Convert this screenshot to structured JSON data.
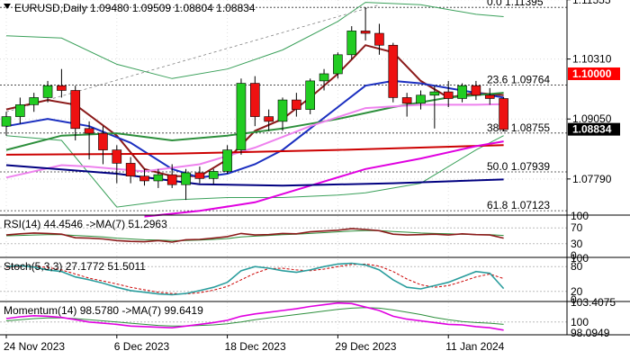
{
  "chart_data": {
    "type": "candlestick",
    "symbol": "EURUSD",
    "timeframe": "Daily",
    "header_ohlc": "1.09480 1.09509 1.08804 1.08834",
    "x_labels": [
      "24 Nov 2023",
      "6 Dec 2023",
      "18 Dec 2023",
      "29 Dec 2023",
      "11 Jan 2024"
    ],
    "x_label_index": [
      0,
      8,
      16,
      24,
      32
    ],
    "price_axis": {
      "ylim": [
        1.0705,
        1.1155
      ],
      "ticks": [
        1.11555,
        1.1031,
        1.0905,
        1.0779
      ],
      "current_price": 1.08834,
      "marker_price": 1.1
    },
    "fibonacci": [
      {
        "label": "0.0",
        "price": 1.11395
      },
      {
        "label": "23.6",
        "price": 1.09764
      },
      {
        "label": "38.2",
        "price": 1.08755
      },
      {
        "label": "50.0",
        "price": 1.07939
      },
      {
        "label": "61.8",
        "price": 1.07123
      }
    ],
    "candles": [
      [
        1.089,
        1.092,
        1.087,
        1.091
      ],
      [
        1.091,
        1.095,
        1.0895,
        1.0935
      ],
      [
        1.0935,
        1.096,
        1.092,
        1.095
      ],
      [
        1.095,
        1.0985,
        1.094,
        1.0975
      ],
      [
        1.0975,
        1.101,
        1.095,
        1.0965
      ],
      [
        1.0965,
        1.0975,
        1.086,
        1.0885
      ],
      [
        1.0885,
        1.09,
        1.082,
        1.0875
      ],
      [
        1.0875,
        1.089,
        1.081,
        1.084
      ],
      [
        1.084,
        1.085,
        1.077,
        1.0812
      ],
      [
        1.0812,
        1.0825,
        1.077,
        1.0785
      ],
      [
        1.0785,
        1.08,
        1.0765,
        1.0775
      ],
      [
        1.0775,
        1.08,
        1.076,
        1.0788
      ],
      [
        1.0788,
        1.081,
        1.076,
        1.0767
      ],
      [
        1.0767,
        1.08,
        1.0735,
        1.0792
      ],
      [
        1.0792,
        1.0805,
        1.077,
        1.078
      ],
      [
        1.078,
        1.08,
        1.0768,
        1.0795
      ],
      [
        1.0795,
        1.085,
        1.079,
        1.084
      ],
      [
        1.084,
        1.099,
        1.083,
        1.098
      ],
      [
        1.098,
        1.0995,
        1.089,
        1.091
      ],
      [
        1.091,
        1.0925,
        1.088,
        1.09
      ],
      [
        1.09,
        1.095,
        1.088,
        1.0945
      ],
      [
        1.0945,
        1.096,
        1.091,
        1.0925
      ],
      [
        1.0925,
        1.099,
        1.0915,
        1.0985
      ],
      [
        1.0985,
        1.101,
        1.0965,
        1.1
      ],
      [
        1.1,
        1.1045,
        1.099,
        1.104
      ],
      [
        1.104,
        1.11,
        1.103,
        1.109
      ],
      [
        1.109,
        1.114,
        1.107,
        1.1085
      ],
      [
        1.1085,
        1.1105,
        1.104,
        1.106
      ],
      [
        1.106,
        1.1065,
        1.094,
        1.095
      ],
      [
        1.095,
        1.096,
        1.091,
        1.0938
      ],
      [
        1.0938,
        1.0965,
        1.0925,
        1.0955
      ],
      [
        1.0955,
        1.0975,
        1.0885,
        1.0962
      ],
      [
        1.0962,
        1.0985,
        1.093,
        1.0948
      ],
      [
        1.0948,
        1.098,
        1.094,
        1.0975
      ],
      [
        1.0975,
        1.0985,
        1.0945,
        1.0955
      ],
      [
        1.0955,
        1.097,
        1.0935,
        1.0948
      ],
      [
        1.0948,
        1.0951,
        1.088,
        1.0883
      ]
    ],
    "ma_bands": {
      "color": "#3aa05a",
      "points": [
        [
          0,
          1.108,
          1.087
        ],
        [
          4,
          1.1075,
          1.086
        ],
        [
          8,
          1.102,
          1.072
        ],
        [
          12,
          1.099,
          1.0735
        ],
        [
          16,
          1.101,
          1.074
        ],
        [
          20,
          1.105,
          1.074
        ],
        [
          24,
          1.111,
          1.0745
        ],
        [
          26,
          1.115,
          1.075
        ],
        [
          30,
          1.1145,
          1.077
        ],
        [
          34,
          1.1125,
          1.084
        ],
        [
          36,
          1.112,
          1.087
        ]
      ]
    },
    "ma_lines": [
      {
        "color": "#8b1a1a",
        "points": [
          [
            0,
            1.0925
          ],
          [
            3,
            1.0945
          ],
          [
            5,
            1.0935
          ],
          [
            8,
            1.087
          ],
          [
            10,
            1.08
          ],
          [
            12,
            1.0785
          ],
          [
            14,
            1.0785
          ],
          [
            16,
            1.082
          ],
          [
            18,
            1.088
          ],
          [
            20,
            1.0905
          ],
          [
            22,
            1.095
          ],
          [
            24,
            1.1
          ],
          [
            26,
            1.106
          ],
          [
            28,
            1.1045
          ],
          [
            30,
            1.0985
          ],
          [
            32,
            1.095
          ],
          [
            34,
            1.096
          ],
          [
            36,
            1.0955
          ]
        ]
      },
      {
        "color": "#1b2fc0",
        "points": [
          [
            0,
            1.089
          ],
          [
            3,
            1.0905
          ],
          [
            6,
            1.089
          ],
          [
            9,
            1.0855
          ],
          [
            12,
            1.08
          ],
          [
            14,
            1.0782
          ],
          [
            16,
            1.079
          ],
          [
            18,
            1.081
          ],
          [
            20,
            1.084
          ],
          [
            22,
            1.0885
          ],
          [
            24,
            1.093
          ],
          [
            26,
            1.0975
          ],
          [
            28,
            1.0985
          ],
          [
            30,
            1.098
          ],
          [
            33,
            1.0965
          ],
          [
            36,
            1.095
          ]
        ]
      },
      {
        "color": "#2d8f3c",
        "points": [
          [
            0,
            1.084
          ],
          [
            4,
            1.087
          ],
          [
            8,
            1.0875
          ],
          [
            12,
            1.086
          ],
          [
            16,
            1.087
          ],
          [
            20,
            1.0885
          ],
          [
            24,
            1.0905
          ],
          [
            28,
            1.093
          ],
          [
            32,
            1.095
          ],
          [
            36,
            1.096
          ]
        ]
      },
      {
        "color": "#ee82ee",
        "points": [
          [
            0,
            1.0782
          ],
          [
            4,
            1.0808
          ],
          [
            6,
            1.0805
          ],
          [
            10,
            1.0795
          ],
          [
            14,
            1.081
          ],
          [
            18,
            1.0845
          ],
          [
            22,
            1.089
          ],
          [
            26,
            1.0928
          ],
          [
            30,
            1.0935
          ],
          [
            34,
            1.0935
          ],
          [
            36,
            1.0936
          ]
        ]
      },
      {
        "color": "#cc0000",
        "points": [
          [
            0,
            1.083
          ],
          [
            12,
            1.0832
          ],
          [
            24,
            1.084
          ],
          [
            36,
            1.085
          ]
        ]
      },
      {
        "color": "#e000e0",
        "points": [
          [
            10,
            1.07
          ],
          [
            14,
            1.0712
          ],
          [
            18,
            1.073
          ],
          [
            22,
            1.0765
          ],
          [
            26,
            1.08
          ],
          [
            30,
            1.0822
          ],
          [
            34,
            1.0848
          ],
          [
            36,
            1.0858
          ]
        ]
      },
      {
        "color": "#000080",
        "points": [
          [
            0,
            1.0808
          ],
          [
            8,
            1.079
          ],
          [
            14,
            1.0768
          ],
          [
            20,
            1.0765
          ],
          [
            28,
            1.077
          ],
          [
            36,
            1.0778
          ]
        ]
      }
    ],
    "trendline": {
      "color": "#808080",
      "points": [
        [
          0,
          1.092
        ],
        [
          27,
          1.1145
        ]
      ]
    },
    "rsi": {
      "label": "RSI(14) 44.4546 ->MA(7) 51.2963",
      "ticks": [
        100,
        70,
        30,
        0
      ],
      "values": [
        52,
        55,
        57,
        56,
        54,
        45,
        44,
        42,
        38,
        36,
        35,
        38,
        34,
        40,
        41,
        44,
        48,
        56,
        52,
        53,
        56,
        55,
        60,
        62,
        64,
        68,
        66,
        63,
        54,
        52,
        53,
        54,
        52,
        55,
        53,
        52,
        44
      ],
      "ma": [
        50,
        51,
        52,
        53,
        53,
        51,
        49,
        47,
        44,
        42,
        40,
        39,
        38,
        38,
        39,
        41,
        43,
        47,
        49,
        51,
        53,
        54,
        56,
        58,
        60,
        62,
        63,
        63,
        61,
        59,
        57,
        56,
        55,
        54,
        53,
        53,
        51
      ]
    },
    "stoch": {
      "label": "Stoch(5,3,3) 27.1772 51.5011",
      "ticks": [
        100,
        80,
        20,
        0
      ],
      "k": [
        80,
        82,
        79,
        72,
        68,
        55,
        48,
        40,
        30,
        22,
        18,
        14,
        12,
        15,
        22,
        30,
        42,
        70,
        80,
        76,
        70,
        66,
        72,
        80,
        86,
        88,
        84,
        72,
        48,
        30,
        26,
        34,
        42,
        55,
        68,
        64,
        27
      ],
      "d": [
        78,
        80,
        80,
        78,
        72,
        62,
        52,
        45,
        38,
        30,
        24,
        18,
        15,
        14,
        17,
        23,
        32,
        48,
        64,
        75,
        76,
        72,
        70,
        74,
        80,
        85,
        86,
        81,
        68,
        50,
        36,
        30,
        34,
        44,
        55,
        62,
        51
      ]
    },
    "momentum": {
      "label": "Momentum(14) 98.5780 ->MA(7) 99.6419",
      "ticks": [
        103.4075,
        100,
        98.0949
      ],
      "values": [
        100.6,
        100.9,
        101.1,
        101.0,
        100.8,
        100.4,
        100.0,
        99.8,
        99.6,
        99.3,
        99.2,
        99.1,
        99.0,
        99.3,
        99.6,
        99.9,
        100.3,
        101.0,
        101.4,
        101.7,
        102.0,
        102.3,
        102.7,
        103.0,
        103.3,
        103.2,
        102.6,
        102.0,
        101.0,
        100.5,
        100.2,
        99.9,
        99.6,
        99.5,
        99.2,
        99.0,
        98.6
      ],
      "ma": [
        100.2,
        100.4,
        100.6,
        100.7,
        100.7,
        100.6,
        100.4,
        100.2,
        100.0,
        99.8,
        99.6,
        99.4,
        99.3,
        99.3,
        99.4,
        99.5,
        99.7,
        100.0,
        100.4,
        100.7,
        101.0,
        101.3,
        101.6,
        101.9,
        102.2,
        102.4,
        102.5,
        102.4,
        102.1,
        101.7,
        101.3,
        100.8,
        100.4,
        100.1,
        99.9,
        99.8,
        99.6
      ]
    }
  }
}
